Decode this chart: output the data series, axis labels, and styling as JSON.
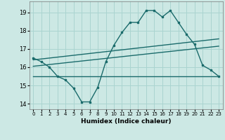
{
  "xlabel": "Humidex (Indice chaleur)",
  "bg_color": "#cce8e4",
  "grid_color": "#aad4d0",
  "line_color": "#1a6b6b",
  "xlim": [
    -0.5,
    23.5
  ],
  "ylim": [
    13.7,
    19.6
  ],
  "yticks": [
    14,
    15,
    16,
    17,
    18,
    19
  ],
  "xticks": [
    0,
    1,
    2,
    3,
    4,
    5,
    6,
    7,
    8,
    9,
    10,
    11,
    12,
    13,
    14,
    15,
    16,
    17,
    18,
    19,
    20,
    21,
    22,
    23
  ],
  "main_x": [
    0,
    1,
    2,
    3,
    4,
    5,
    6,
    7,
    8,
    9,
    10,
    11,
    12,
    13,
    14,
    15,
    16,
    17,
    18,
    19,
    20,
    21,
    22,
    23
  ],
  "main_y": [
    16.5,
    16.3,
    16.0,
    15.5,
    15.3,
    14.85,
    14.1,
    14.1,
    14.9,
    16.3,
    17.2,
    17.9,
    18.45,
    18.45,
    19.1,
    19.1,
    18.75,
    19.1,
    18.45,
    17.8,
    17.25,
    16.1,
    15.85,
    15.5
  ],
  "line2_x": [
    0,
    23
  ],
  "line2_y": [
    16.4,
    17.55
  ],
  "line3_x": [
    0,
    23
  ],
  "line3_y": [
    16.05,
    17.15
  ],
  "line4_x": [
    0,
    23
  ],
  "line4_y": [
    15.5,
    15.5
  ]
}
